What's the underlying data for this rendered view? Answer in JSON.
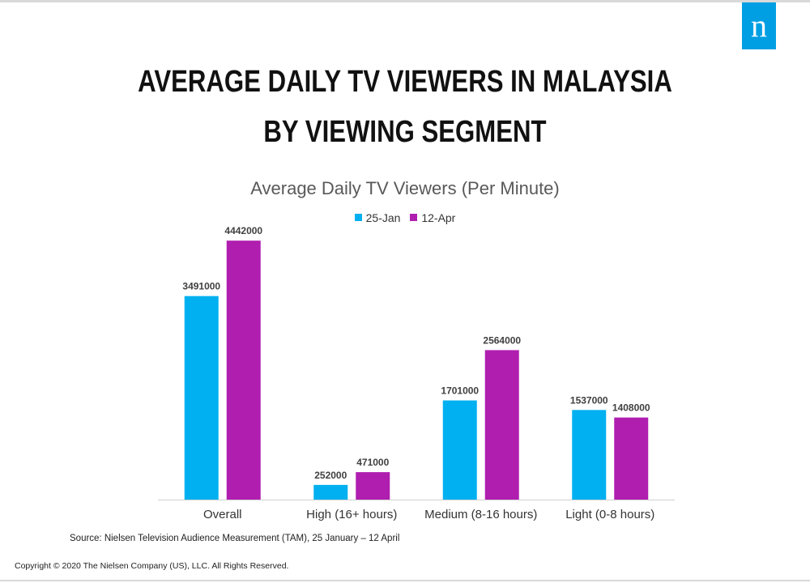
{
  "brand": {
    "logo_letter": "n",
    "logo_color": "#009fe3"
  },
  "title": {
    "line1": "AVERAGE DAILY TV VIEWERS IN MALAYSIA",
    "line2": "BY VIEWING SEGMENT"
  },
  "chart_data": {
    "type": "bar",
    "title": "Average Daily TV Viewers (Per Minute)",
    "categories": [
      "Overall",
      "High (16+ hours)",
      "Medium (8-16 hours)",
      "Light (0-8 hours)"
    ],
    "series": [
      {
        "name": "25-Jan",
        "color": "#00b0f0",
        "values": [
          3491000,
          252000,
          1701000,
          1537000
        ]
      },
      {
        "name": "12-Apr",
        "color": "#b01eb0",
        "values": [
          4442000,
          471000,
          2564000,
          1408000
        ]
      }
    ],
    "ylim": [
      0,
      5000000
    ],
    "grid": false,
    "legend_position": "top-center",
    "data_labels": true
  },
  "source": "Source:  Nielsen Television Audience Measurement (TAM), 25 January – 12 April",
  "copyright": "Copyright © 2020 The Nielsen Company (US), LLC. All Rights Reserved."
}
